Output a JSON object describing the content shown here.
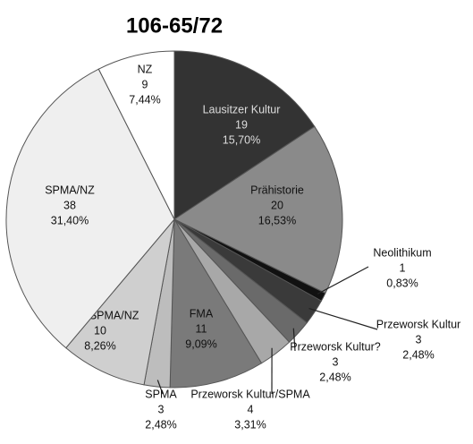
{
  "chart_data": {
    "type": "pie",
    "title": "106-65/72",
    "categories": [
      "Lausitzer Kultur",
      "Prähistorie",
      "Neolithikum",
      "Przeworsk Kultur",
      "Przeworsk Kultur?",
      "Przeworsk Kultur/SPMA",
      "FMA",
      "SPMA",
      "HMA/SPMA/NZ",
      "SPMA/NZ",
      "NZ"
    ],
    "values": [
      19,
      20,
      1,
      3,
      3,
      4,
      11,
      3,
      10,
      38,
      9
    ],
    "percentages": [
      {
        "value": 15.7,
        "label": "15,70%"
      },
      {
        "value": 16.53,
        "label": "16,53%"
      },
      {
        "value": 0.83,
        "label": "0,83%"
      },
      {
        "value": 2.48,
        "label": "2,48%"
      },
      {
        "value": 2.48,
        "label": "2,48%"
      },
      {
        "value": 3.31,
        "label": "3,31%"
      },
      {
        "value": 9.09,
        "label": "9,09%"
      },
      {
        "value": 2.48,
        "label": "2,48%"
      },
      {
        "value": 8.26,
        "label": "8,26%"
      },
      {
        "value": 31.4,
        "label": "31,40%"
      },
      {
        "value": 7.44,
        "label": "7,44%"
      }
    ],
    "colors": [
      "#333333",
      "#8a8a8a",
      "#111111",
      "#3a3a3a",
      "#6a6a6a",
      "#a8a8a8",
      "#7a7a7a",
      "#bdbdbd",
      "#cfcfcf",
      "#efefef",
      "#ffffff"
    ]
  }
}
